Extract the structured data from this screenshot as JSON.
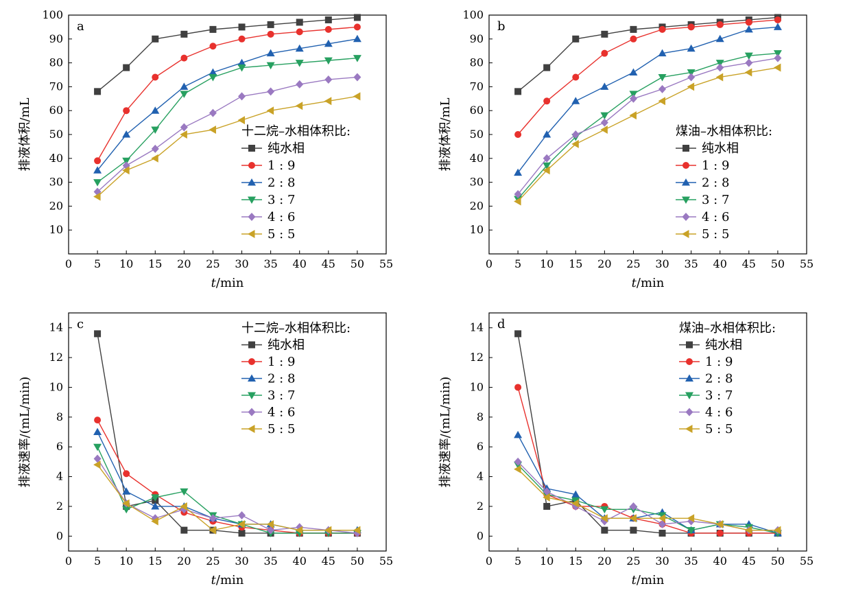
{
  "chart_data": [
    {
      "id": "a",
      "type": "line",
      "panel_label": "a",
      "xlabel_italic": "t",
      "xlabel_unit": "/min",
      "ylabel": "排液体积/mL",
      "xlim": [
        0,
        55
      ],
      "ylim": [
        0,
        100
      ],
      "xticks": [
        0,
        5,
        10,
        15,
        20,
        25,
        30,
        35,
        40,
        45,
        50,
        55
      ],
      "yticks": [
        10,
        20,
        30,
        40,
        50,
        60,
        70,
        80,
        90,
        100
      ],
      "x": [
        5,
        10,
        15,
        20,
        25,
        30,
        35,
        40,
        45,
        50
      ],
      "legend_title": "十二烷–水相体积比:",
      "legend_position": "center-right",
      "series": [
        {
          "name": "纯水相",
          "color": "#404040",
          "marker": "square",
          "values": [
            68,
            78,
            90,
            92,
            94,
            95,
            96,
            97,
            98,
            99
          ]
        },
        {
          "name": "1 : 9",
          "color": "#e8312d",
          "marker": "circle",
          "values": [
            39,
            60,
            74,
            82,
            87,
            90,
            92,
            93,
            94,
            95
          ]
        },
        {
          "name": "2 : 8",
          "color": "#2161b0",
          "marker": "triangle-up",
          "values": [
            35,
            50,
            60,
            70,
            76,
            80,
            84,
            86,
            88,
            90
          ]
        },
        {
          "name": "3 : 7",
          "color": "#27a060",
          "marker": "triangle-down",
          "values": [
            30,
            39,
            52,
            67,
            74,
            78,
            79,
            80,
            81,
            82
          ]
        },
        {
          "name": "4 : 6",
          "color": "#9a79c1",
          "marker": "diamond",
          "values": [
            26,
            37,
            44,
            53,
            59,
            66,
            68,
            71,
            73,
            74
          ]
        },
        {
          "name": "5 : 5",
          "color": "#c9a227",
          "marker": "triangle-left",
          "values": [
            24,
            35,
            40,
            50,
            52,
            56,
            60,
            62,
            64,
            66
          ]
        }
      ]
    },
    {
      "id": "b",
      "type": "line",
      "panel_label": "b",
      "xlabel_italic": "t",
      "xlabel_unit": "/min",
      "ylabel": "排液体积/mL",
      "xlim": [
        0,
        55
      ],
      "ylim": [
        0,
        100
      ],
      "xticks": [
        0,
        5,
        10,
        15,
        20,
        25,
        30,
        35,
        40,
        45,
        50,
        55
      ],
      "yticks": [
        10,
        20,
        30,
        40,
        50,
        60,
        70,
        80,
        90,
        100
      ],
      "x": [
        5,
        10,
        15,
        20,
        25,
        30,
        35,
        40,
        45,
        50
      ],
      "legend_title": "煤油–水相体积比:",
      "legend_position": "center-right",
      "series": [
        {
          "name": "纯水相",
          "color": "#404040",
          "marker": "square",
          "values": [
            68,
            78,
            90,
            92,
            94,
            95,
            96,
            97,
            98,
            99
          ]
        },
        {
          "name": "1 : 9",
          "color": "#e8312d",
          "marker": "circle",
          "values": [
            50,
            64,
            74,
            84,
            90,
            94,
            95,
            96,
            97,
            98
          ]
        },
        {
          "name": "2 : 8",
          "color": "#2161b0",
          "marker": "triangle-up",
          "values": [
            34,
            50,
            64,
            70,
            76,
            84,
            86,
            90,
            94,
            95
          ]
        },
        {
          "name": "3 : 7",
          "color": "#27a060",
          "marker": "triangle-down",
          "values": [
            23,
            37,
            49,
            58,
            67,
            74,
            76,
            80,
            83,
            84
          ]
        },
        {
          "name": "4 : 6",
          "color": "#9a79c1",
          "marker": "diamond",
          "values": [
            25,
            40,
            50,
            55,
            65,
            69,
            74,
            78,
            80,
            82
          ]
        },
        {
          "name": "5 : 5",
          "color": "#c9a227",
          "marker": "triangle-left",
          "values": [
            22,
            35,
            46,
            52,
            58,
            64,
            70,
            74,
            76,
            78
          ]
        }
      ]
    },
    {
      "id": "c",
      "type": "line",
      "panel_label": "c",
      "xlabel_italic": "t",
      "xlabel_unit": "/min",
      "ylabel": "排液速率/(mL/min)",
      "xlim": [
        0,
        55
      ],
      "ylim": [
        -1,
        15
      ],
      "xticks": [
        0,
        5,
        10,
        15,
        20,
        25,
        30,
        35,
        40,
        45,
        50,
        55
      ],
      "yticks": [
        0,
        2,
        4,
        6,
        8,
        10,
        12,
        14
      ],
      "x": [
        5,
        10,
        15,
        20,
        25,
        30,
        35,
        40,
        45,
        50
      ],
      "legend_title": "十二烷–水相体积比:",
      "legend_position": "top-right",
      "series": [
        {
          "name": "纯水相",
          "color": "#404040",
          "marker": "square",
          "values": [
            13.6,
            2.0,
            2.4,
            0.4,
            0.4,
            0.2,
            0.2,
            0.2,
            0.2,
            0.2
          ]
        },
        {
          "name": "1 : 9",
          "color": "#e8312d",
          "marker": "circle",
          "values": [
            7.8,
            4.2,
            2.8,
            1.6,
            1.0,
            0.6,
            0.4,
            0.2,
            0.2,
            0.2
          ]
        },
        {
          "name": "2 : 8",
          "color": "#2161b0",
          "marker": "triangle-up",
          "values": [
            7.0,
            3.0,
            2.0,
            2.0,
            1.2,
            0.8,
            0.8,
            0.4,
            0.4,
            0.4
          ]
        },
        {
          "name": "3 : 7",
          "color": "#27a060",
          "marker": "triangle-down",
          "values": [
            6.0,
            1.8,
            2.6,
            3.0,
            1.4,
            0.8,
            0.2,
            0.2,
            0.2,
            0.2
          ]
        },
        {
          "name": "4 : 6",
          "color": "#9a79c1",
          "marker": "diamond",
          "values": [
            5.2,
            2.2,
            1.2,
            1.8,
            1.2,
            1.4,
            0.4,
            0.6,
            0.4,
            0.2
          ]
        },
        {
          "name": "5 : 5",
          "color": "#c9a227",
          "marker": "triangle-left",
          "values": [
            4.8,
            2.2,
            1.0,
            2.0,
            0.4,
            0.8,
            0.8,
            0.4,
            0.4,
            0.4
          ]
        }
      ]
    },
    {
      "id": "d",
      "type": "line",
      "panel_label": "d",
      "xlabel_italic": "t",
      "xlabel_unit": "/min",
      "ylabel": "排液速率/(mL/min)",
      "xlim": [
        0,
        55
      ],
      "ylim": [
        -1,
        15
      ],
      "xticks": [
        0,
        5,
        10,
        15,
        20,
        25,
        30,
        35,
        40,
        45,
        50,
        55
      ],
      "yticks": [
        0,
        2,
        4,
        6,
        8,
        10,
        12,
        14
      ],
      "x": [
        5,
        10,
        15,
        20,
        25,
        30,
        35,
        40,
        45,
        50
      ],
      "legend_title": "煤油–水相体积比:",
      "legend_position": "top-right",
      "series": [
        {
          "name": "纯水相",
          "color": "#404040",
          "marker": "square",
          "values": [
            13.6,
            2.0,
            2.4,
            0.4,
            0.4,
            0.2,
            0.2,
            0.2,
            0.2,
            0.2
          ]
        },
        {
          "name": "1 : 9",
          "color": "#e8312d",
          "marker": "circle",
          "values": [
            10.0,
            2.8,
            2.0,
            2.0,
            1.2,
            0.8,
            0.2,
            0.2,
            0.2,
            0.2
          ]
        },
        {
          "name": "2 : 8",
          "color": "#2161b0",
          "marker": "triangle-up",
          "values": [
            6.8,
            3.2,
            2.8,
            1.2,
            1.2,
            1.6,
            0.4,
            0.8,
            0.8,
            0.2
          ]
        },
        {
          "name": "3 : 7",
          "color": "#27a060",
          "marker": "triangle-down",
          "values": [
            4.8,
            2.8,
            2.4,
            1.8,
            1.8,
            1.4,
            0.4,
            0.8,
            0.6,
            0.2
          ]
        },
        {
          "name": "4 : 6",
          "color": "#9a79c1",
          "marker": "diamond",
          "values": [
            5.0,
            3.0,
            2.0,
            1.0,
            2.0,
            0.8,
            1.0,
            0.8,
            0.4,
            0.4
          ]
        },
        {
          "name": "5 : 5",
          "color": "#c9a227",
          "marker": "triangle-left",
          "values": [
            4.5,
            2.6,
            2.2,
            1.2,
            1.2,
            1.2,
            1.2,
            0.8,
            0.4,
            0.4
          ]
        }
      ]
    }
  ]
}
